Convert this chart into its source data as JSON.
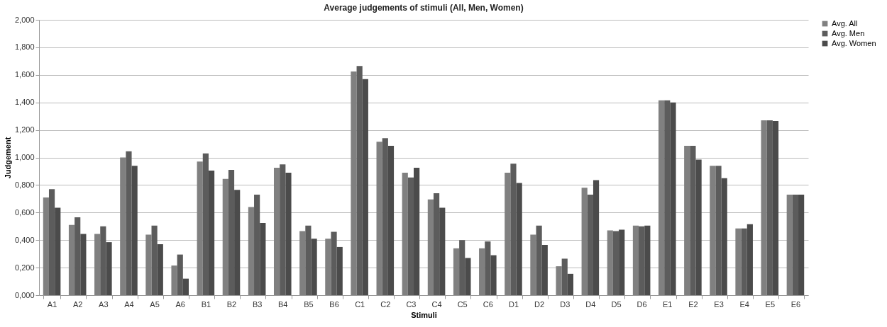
{
  "chart_data": {
    "type": "bar",
    "title": "Average judgements of stimuli (All, Men, Women)",
    "xlabel": "Stimuli",
    "ylabel": "Judgement",
    "categories": [
      "A1",
      "A2",
      "A3",
      "A4",
      "A5",
      "A6",
      "B1",
      "B2",
      "B3",
      "B4",
      "B5",
      "B6",
      "C1",
      "C2",
      "C3",
      "C4",
      "C5",
      "C6",
      "D1",
      "D2",
      "D3",
      "D4",
      "D5",
      "D6",
      "E1",
      "E2",
      "E3",
      "E4",
      "E5",
      "E6"
    ],
    "series": [
      {
        "name": "Avg. All",
        "color": "#808080",
        "values": [
          0.71,
          0.51,
          0.445,
          1.0,
          0.44,
          0.215,
          0.97,
          0.845,
          0.64,
          0.925,
          0.465,
          0.41,
          1.625,
          1.115,
          0.89,
          0.695,
          0.34,
          0.34,
          0.89,
          0.44,
          0.21,
          0.78,
          0.47,
          0.505,
          1.415,
          1.085,
          0.94,
          0.485,
          1.27,
          0.73
        ]
      },
      {
        "name": "Avg. Men",
        "color": "#5c5c5c",
        "values": [
          0.77,
          0.565,
          0.5,
          1.045,
          0.505,
          0.295,
          1.03,
          0.91,
          0.73,
          0.95,
          0.505,
          0.46,
          1.665,
          1.14,
          0.855,
          0.74,
          0.4,
          0.39,
          0.955,
          0.505,
          0.265,
          0.73,
          0.465,
          0.5,
          1.415,
          1.085,
          0.94,
          0.485,
          1.27,
          0.73
        ]
      },
      {
        "name": "Avg. Women",
        "color": "#4b4b4b",
        "values": [
          0.635,
          0.445,
          0.385,
          0.94,
          0.37,
          0.12,
          0.905,
          0.765,
          0.525,
          0.89,
          0.41,
          0.35,
          1.57,
          1.085,
          0.925,
          0.635,
          0.27,
          0.29,
          0.815,
          0.365,
          0.155,
          0.835,
          0.475,
          0.505,
          1.4,
          0.985,
          0.85,
          0.515,
          1.265,
          0.73
        ]
      }
    ],
    "ylim": [
      0,
      2
    ],
    "yticks": [
      {
        "value": 0,
        "label": "0,000"
      },
      {
        "value": 0.2,
        "label": "0,200"
      },
      {
        "value": 0.4,
        "label": "0,400"
      },
      {
        "value": 0.6,
        "label": "0,600"
      },
      {
        "value": 0.8,
        "label": "0,800"
      },
      {
        "value": 1.0,
        "label": "1,000"
      },
      {
        "value": 1.2,
        "label": "1,200"
      },
      {
        "value": 1.4,
        "label": "1,400"
      },
      {
        "value": 1.6,
        "label": "1,600"
      },
      {
        "value": 1.8,
        "label": "1,800"
      },
      {
        "value": 2.0,
        "label": "2,000"
      }
    ],
    "grid": "y",
    "legend": "right"
  }
}
